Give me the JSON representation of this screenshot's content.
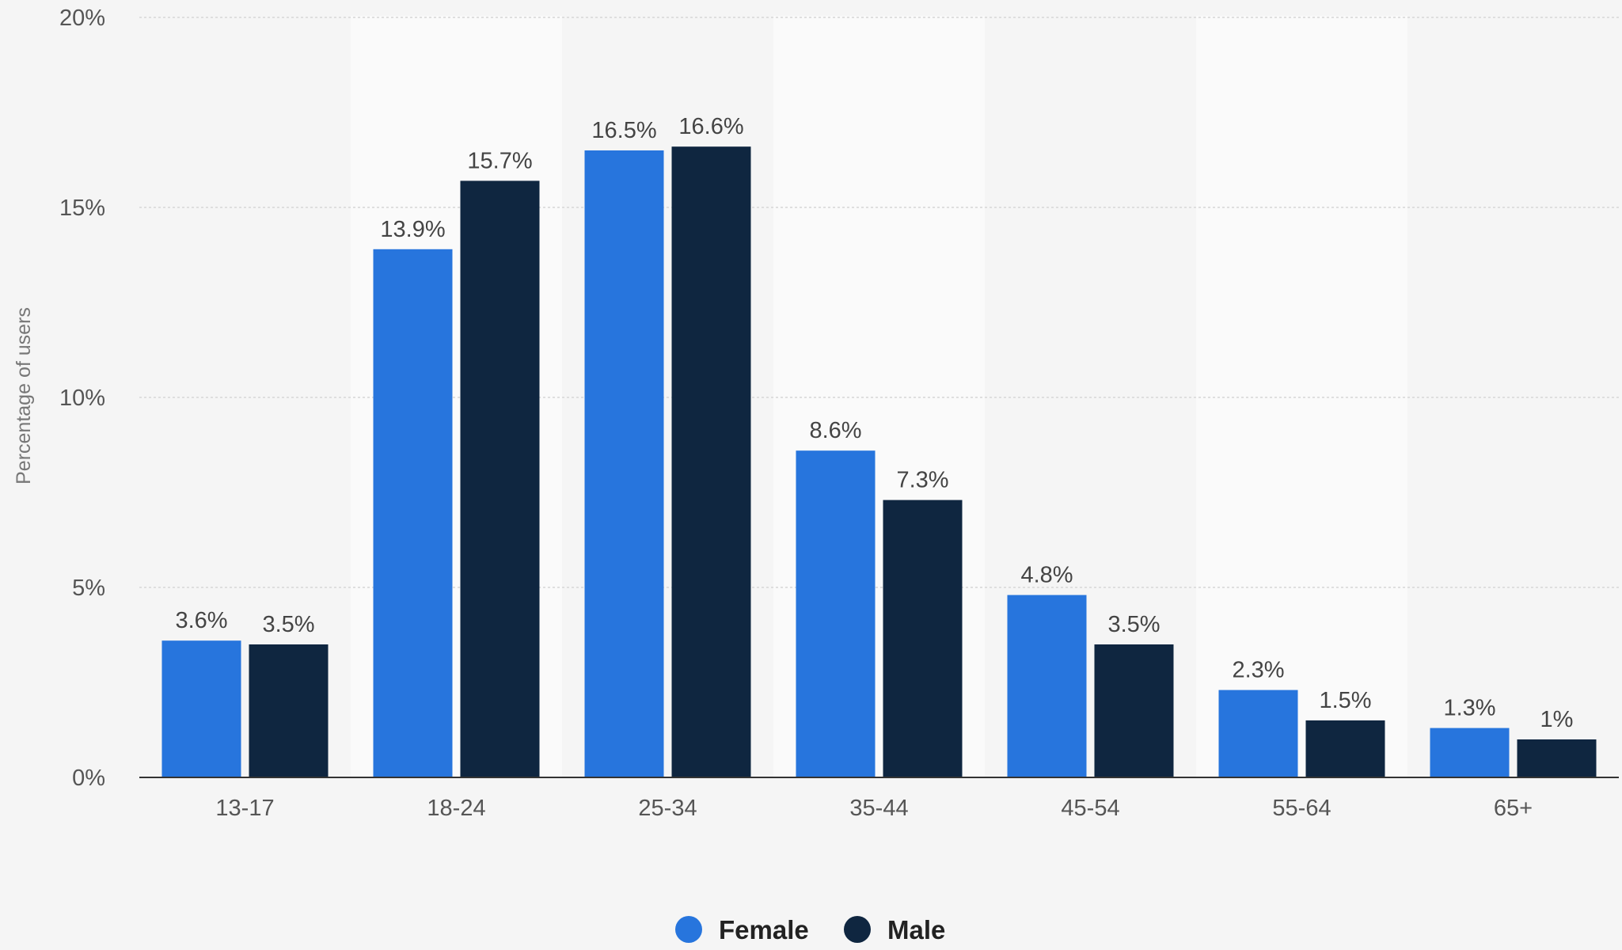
{
  "chart_data": {
    "type": "bar",
    "title": "",
    "xlabel": "",
    "ylabel": "Percentage of users",
    "categories": [
      "13-17",
      "18-24",
      "25-34",
      "35-44",
      "45-54",
      "55-64",
      "65+"
    ],
    "series": [
      {
        "name": "Female",
        "color": "#2775dd",
        "values": [
          3.6,
          13.9,
          16.5,
          8.6,
          4.8,
          2.3,
          1.3
        ],
        "labels": [
          "3.6%",
          "13.9%",
          "16.5%",
          "8.6%",
          "4.8%",
          "2.3%",
          "1.3%"
        ]
      },
      {
        "name": "Male",
        "color": "#0f2640",
        "values": [
          3.5,
          15.7,
          16.6,
          7.3,
          3.5,
          1.5,
          1.0
        ],
        "labels": [
          "3.5%",
          "15.7%",
          "16.6%",
          "7.3%",
          "3.5%",
          "1.5%",
          "1%"
        ]
      }
    ],
    "ylim": [
      0,
      20
    ],
    "yticks": [
      0,
      5,
      10,
      15,
      20
    ],
    "ytick_labels": [
      "0%",
      "5%",
      "10%",
      "15%",
      "20%"
    ],
    "grid": true,
    "legend_position": "bottom-center"
  }
}
